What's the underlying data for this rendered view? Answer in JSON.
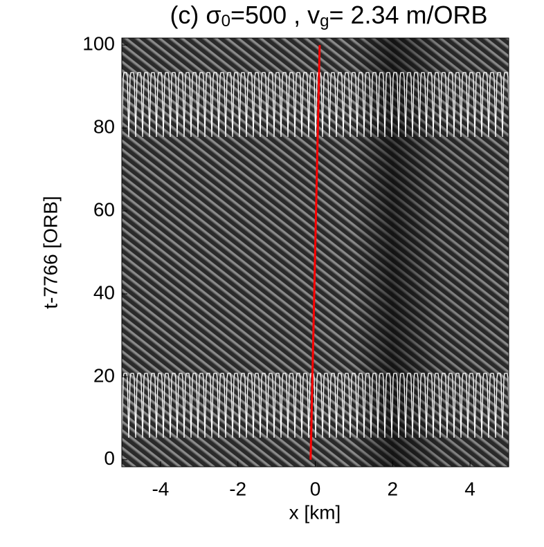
{
  "chart_data": {
    "type": "line",
    "title": [
      "(c) σ",
      "0",
      "=500 , v",
      "g",
      "= 2.34 m/ORB"
    ],
    "xlabel": "x [km]",
    "ylabel": "t-7766 [ORB]",
    "xlim": [
      -5,
      5
    ],
    "ylim": [
      -1.7,
      101.7
    ],
    "xticks": [
      -4,
      -2,
      0,
      2,
      4
    ],
    "yticks": [
      0,
      20,
      40,
      60,
      80,
      100
    ],
    "x": [
      -0.12,
      0.114
    ],
    "series": [
      {
        "color": "#ff0000",
        "values": [
          0,
          100
        ]
      }
    ]
  }
}
